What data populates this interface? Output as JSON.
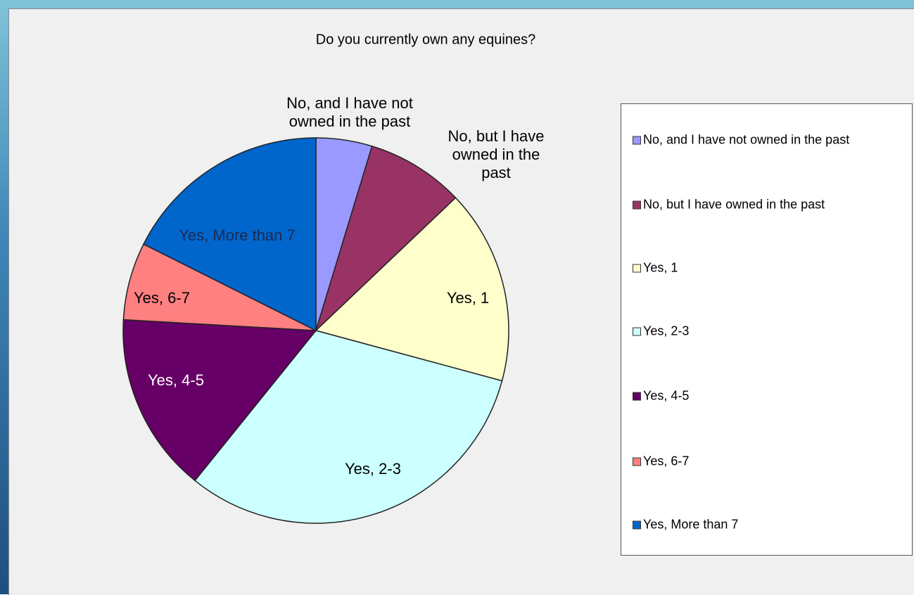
{
  "chart_data": {
    "type": "pie",
    "title": "Do you currently own any equines?",
    "categories": [
      "No, and I have not owned in the past",
      "No, but I have owned in the past",
      "Yes, 1",
      "Yes, 2-3",
      "Yes, 4-5",
      "Yes, 6-7",
      "Yes, More than 7"
    ],
    "values": [
      4.7,
      8.2,
      16.3,
      31.6,
      15.1,
      6.5,
      17.6
    ],
    "colors": [
      "#9999ff",
      "#993366",
      "#ffffcc",
      "#ccffff",
      "#660066",
      "#ff8080",
      "#0066cc"
    ],
    "legend": "right"
  }
}
